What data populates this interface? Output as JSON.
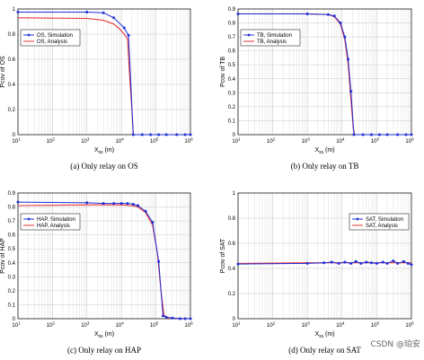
{
  "colors": {
    "simulation": "#1f2fd6",
    "analysis": "#e8323a",
    "grid": "#d7d7d7",
    "axis": "#000000"
  },
  "watermark": "CSDN @珀安",
  "chart_data": [
    {
      "type": "line",
      "caption": "(a) Only relay on OS",
      "xlabel": "X_ss (m)",
      "ylabel": "Pcov of OS",
      "xscale": "log",
      "xlim": [
        10,
        1000000
      ],
      "ylim": [
        0,
        1
      ],
      "yticks": [
        0,
        0.2,
        0.4,
        0.6,
        0.8,
        1
      ],
      "ytick_labels": [
        "0",
        "0.2",
        "0.4",
        "0.6",
        "0.8",
        "1"
      ],
      "xtick_labels": [
        "10^1",
        "10^2",
        "10^3",
        "10^4",
        "10^5",
        "10^6"
      ],
      "legend_position": "upper-left",
      "series": [
        {
          "name": "OS, Simulation",
          "marker": true,
          "x": [
            10,
            1000,
            3000,
            6000,
            12000,
            16000,
            22000,
            40000,
            70000,
            120000,
            200000,
            400000,
            700000,
            1000000
          ],
          "y": [
            0.975,
            0.975,
            0.97,
            0.93,
            0.85,
            0.79,
            0,
            0,
            0,
            0,
            0,
            0,
            0,
            0
          ]
        },
        {
          "name": "OS, Analysis",
          "marker": false,
          "x": [
            10,
            1000,
            3000,
            6000,
            9000,
            12000,
            15000,
            17000,
            20000,
            22000,
            1000000
          ],
          "y": [
            0.93,
            0.925,
            0.91,
            0.88,
            0.84,
            0.8,
            0.76,
            0.5,
            0.2,
            0,
            0
          ]
        }
      ]
    },
    {
      "type": "line",
      "caption": "(b) Only relay on TB",
      "xlabel": "X_ss (m)",
      "ylabel": "Pcov of TB",
      "xscale": "log",
      "xlim": [
        10,
        1000000
      ],
      "ylim": [
        0,
        0.9
      ],
      "yticks": [
        0,
        0.1,
        0.2,
        0.3,
        0.4,
        0.5,
        0.6,
        0.7,
        0.8,
        0.9
      ],
      "ytick_labels": [
        "0",
        "0.1",
        "0.2",
        "0.3",
        "0.4",
        "0.5",
        "0.6",
        "0.7",
        "0.8",
        "0.9"
      ],
      "xtick_labels": [
        "10^1",
        "10^2",
        "10^3",
        "10^4",
        "10^5",
        "10^6"
      ],
      "legend_position": "upper-left",
      "series": [
        {
          "name": "TB, Simulation",
          "marker": true,
          "x": [
            10,
            1000,
            4000,
            6000,
            9000,
            12000,
            15000,
            18000,
            22000,
            40000,
            70000,
            120000,
            200000,
            400000,
            700000,
            1000000
          ],
          "y": [
            0.865,
            0.865,
            0.86,
            0.85,
            0.8,
            0.7,
            0.54,
            0.31,
            0,
            0,
            0,
            0,
            0,
            0,
            0,
            0
          ]
        },
        {
          "name": "TB, Analysis",
          "marker": false,
          "x": [
            10,
            1000,
            4000,
            6000,
            9000,
            12000,
            15000,
            18000,
            21000,
            23000,
            1000000
          ],
          "y": [
            0.865,
            0.865,
            0.86,
            0.845,
            0.79,
            0.68,
            0.5,
            0.25,
            0.05,
            0,
            0
          ]
        }
      ]
    },
    {
      "type": "line",
      "caption": "(c) Only relay on HAP",
      "xlabel": "X_ss (m)",
      "ylabel": "Pcov of HAP",
      "xscale": "log",
      "xlim": [
        10,
        1000000
      ],
      "ylim": [
        0,
        0.9
      ],
      "yticks": [
        0,
        0.1,
        0.2,
        0.3,
        0.4,
        0.5,
        0.6,
        0.7,
        0.8,
        0.9
      ],
      "ytick_labels": [
        "0",
        "0.1",
        "0.2",
        "0.3",
        "0.4",
        "0.5",
        "0.6",
        "0.7",
        "0.8",
        "0.9"
      ],
      "xtick_labels": [
        "10^1",
        "10^2",
        "10^3",
        "10^4",
        "10^5",
        "10^6"
      ],
      "legend_position": "upper-left",
      "series": [
        {
          "name": "HAP, Simulation",
          "marker": true,
          "x": [
            10,
            1000,
            3000,
            6000,
            10000,
            15000,
            22000,
            30000,
            50000,
            80000,
            120000,
            160000,
            200000,
            300000,
            500000,
            700000,
            1000000
          ],
          "y": [
            0.835,
            0.83,
            0.825,
            0.825,
            0.825,
            0.825,
            0.82,
            0.81,
            0.77,
            0.69,
            0.41,
            0.02,
            0.01,
            0.005,
            0,
            0,
            0
          ]
        },
        {
          "name": "HAP, Analysis",
          "marker": false,
          "x": [
            10,
            1000,
            5000,
            10000,
            20000,
            30000,
            50000,
            80000,
            110000,
            140000,
            170000,
            200000,
            1000000
          ],
          "y": [
            0.81,
            0.815,
            0.815,
            0.815,
            0.81,
            0.8,
            0.76,
            0.67,
            0.47,
            0.2,
            0.03,
            0.005,
            0
          ]
        }
      ]
    },
    {
      "type": "line",
      "caption": "(d) Only relay on SAT",
      "xlabel": "X_ss (m)",
      "ylabel": "Pcov of SAT",
      "xscale": "log",
      "xlim": [
        10,
        1000000
      ],
      "ylim": [
        0,
        1
      ],
      "yticks": [
        0,
        0.2,
        0.4,
        0.6,
        0.8,
        1
      ],
      "ytick_labels": [
        "0",
        "0.2",
        "0.4",
        "0.6",
        "0.8",
        "1"
      ],
      "xtick_labels": [
        "10^1",
        "10^2",
        "10^3",
        "10^4",
        "10^5",
        "10^6"
      ],
      "legend_position": "upper-right",
      "series": [
        {
          "name": "SAT, Simulation",
          "marker": true,
          "x": [
            10,
            1000,
            3000,
            5000,
            8000,
            12000,
            18000,
            25000,
            35000,
            50000,
            70000,
            100000,
            150000,
            200000,
            300000,
            400000,
            600000,
            800000,
            1000000
          ],
          "y": [
            0.435,
            0.44,
            0.445,
            0.45,
            0.44,
            0.45,
            0.44,
            0.455,
            0.44,
            0.45,
            0.445,
            0.44,
            0.45,
            0.44,
            0.46,
            0.44,
            0.455,
            0.44,
            0.43
          ]
        },
        {
          "name": "SAT, Analysis",
          "marker": false,
          "x": [
            10,
            1000,
            100000,
            1000000
          ],
          "y": [
            0.44,
            0.445,
            0.445,
            0.445
          ]
        }
      ]
    }
  ]
}
